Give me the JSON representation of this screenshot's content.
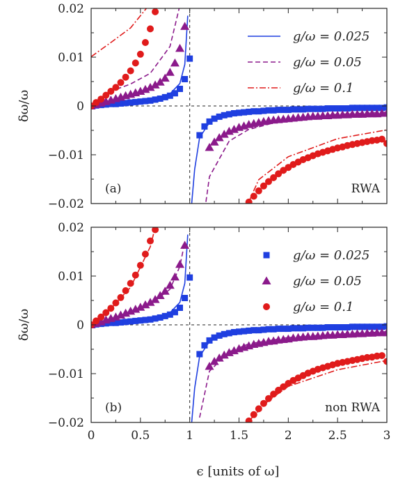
{
  "chart_data": [
    {
      "type": "line",
      "panel_tag": "(a)",
      "corner_label": "RWA",
      "xlabel": "",
      "ylabel": "δω/ω",
      "xlim": [
        0,
        3
      ],
      "ylim": [
        -0.02,
        0.02
      ],
      "x_ticks": [],
      "y_ticks": [
        -0.02,
        -0.01,
        0,
        0.01,
        0.02
      ],
      "y_tick_labels": [
        "−0.02",
        "−0.01",
        "0",
        "0.01",
        "0.02"
      ],
      "legend_position": "top-right",
      "legend": [
        {
          "label": "g/ω = 0.025",
          "style": "solid",
          "color": "#1f3fe0"
        },
        {
          "label": "g/ω = 0.05",
          "style": "dashed",
          "color": "#8b1a8b"
        },
        {
          "label": "g/ω = 0.1",
          "style": "dashdot",
          "color": "#e01b1b"
        }
      ],
      "reference_lines": {
        "horizontal_y": 0,
        "vertical_x": 1
      },
      "series": [
        {
          "color": "#1f3fe0",
          "style": "solid",
          "g": 0.025,
          "x": [
            0,
            0.2,
            0.4,
            0.6,
            0.8,
            0.9,
            0.95,
            0.98,
            1.02,
            1.05,
            1.1,
            1.2,
            1.4,
            1.6,
            2.0,
            2.5,
            3.0
          ],
          "y": [
            0,
            0.0004,
            0.0007,
            0.0012,
            0.0025,
            0.0046,
            0.0085,
            0.0185,
            -0.02,
            -0.013,
            -0.0065,
            -0.0034,
            -0.0017,
            -0.0011,
            -0.0006,
            -0.0004,
            -0.0003
          ]
        },
        {
          "color": "#8b1a8b",
          "style": "dashed",
          "g": 0.05,
          "x": [
            0,
            0.2,
            0.4,
            0.6,
            0.8,
            0.9,
            0.95,
            1.1,
            1.2,
            1.4,
            1.6,
            2.0,
            2.5,
            3.0
          ],
          "y": [
            0,
            0.003,
            0.0045,
            0.0067,
            0.0122,
            0.0206,
            0.029,
            -0.029,
            -0.0145,
            -0.0072,
            -0.0048,
            -0.0027,
            -0.0017,
            -0.0013
          ]
        },
        {
          "color": "#e01b1b",
          "style": "dashdot",
          "g": 0.1,
          "x": [
            0,
            0.2,
            0.4,
            0.6,
            0.7,
            1.55,
            1.7,
            2.0,
            2.5,
            3.0
          ],
          "y": [
            0.0101,
            0.013,
            0.016,
            0.021,
            0.025,
            -0.0219,
            -0.0151,
            -0.0104,
            -0.0067,
            -0.0049
          ]
        }
      ],
      "markers": [
        {
          "color": "#1f3fe0",
          "marker": "square",
          "x": [
            0,
            0.05,
            0.1,
            0.15,
            0.2,
            0.25,
            0.3,
            0.35,
            0.4,
            0.45,
            0.5,
            0.55,
            0.6,
            0.65,
            0.7,
            0.75,
            0.8,
            0.85,
            0.9,
            0.95,
            1.0,
            1.1,
            1.15,
            1.2,
            1.25,
            1.3,
            1.35,
            1.4,
            1.45,
            1.5,
            1.55,
            1.6,
            1.65,
            1.7,
            1.75,
            1.8,
            1.85,
            1.9,
            1.95,
            2.0,
            2.05,
            2.1,
            2.15,
            2.2,
            2.25,
            2.3,
            2.35,
            2.4,
            2.45,
            2.5,
            2.55,
            2.6,
            2.65,
            2.7,
            2.75,
            2.8,
            2.85,
            2.9,
            2.95,
            3.0
          ],
          "y": [
            0,
            0.0001,
            0.0002,
            0.0003,
            0.0004,
            0.0004,
            0.0005,
            0.0006,
            0.0007,
            0.0008,
            0.0009,
            0.001,
            0.0011,
            0.0013,
            0.0015,
            0.0018,
            0.0021,
            0.0026,
            0.0035,
            0.0055,
            0.0097,
            -0.006,
            -0.0042,
            -0.0032,
            -0.0026,
            -0.0022,
            -0.0019,
            -0.0017,
            -0.0015,
            -0.0014,
            -0.0013,
            -0.0012,
            -0.0011,
            -0.0011,
            -0.001,
            -0.0009,
            -0.0009,
            -0.0008,
            -0.0008,
            -0.0008,
            -0.0007,
            -0.0007,
            -0.0007,
            -0.0006,
            -0.0006,
            -0.0006,
            -0.0006,
            -0.0005,
            -0.0005,
            -0.0005,
            -0.0005,
            -0.0005,
            -0.0004,
            -0.0004,
            -0.0004,
            -0.0004,
            -0.0004,
            -0.0004,
            -0.0004,
            -0.0003
          ]
        },
        {
          "color": "#8b1a8b",
          "marker": "triangle",
          "x": [
            0,
            0.05,
            0.1,
            0.15,
            0.2,
            0.25,
            0.3,
            0.35,
            0.4,
            0.45,
            0.5,
            0.55,
            0.6,
            0.65,
            0.7,
            0.75,
            0.8,
            0.85,
            0.9,
            0.95,
            1.2,
            1.25,
            1.3,
            1.35,
            1.4,
            1.45,
            1.5,
            1.55,
            1.6,
            1.65,
            1.7,
            1.75,
            1.8,
            1.85,
            1.9,
            1.95,
            2.0,
            2.05,
            2.1,
            2.15,
            2.2,
            2.25,
            2.3,
            2.35,
            2.4,
            2.45,
            2.5,
            2.55,
            2.6,
            2.65,
            2.7,
            2.75,
            2.8,
            2.85,
            2.9,
            2.95,
            3.0
          ],
          "y": [
            0,
            0.0003,
            0.0006,
            0.0009,
            0.0012,
            0.0015,
            0.0018,
            0.0021,
            0.0024,
            0.0027,
            0.003,
            0.0034,
            0.0038,
            0.0043,
            0.0049,
            0.0057,
            0.0069,
            0.0088,
            0.0118,
            0.0163,
            -0.0085,
            -0.0074,
            -0.0065,
            -0.0058,
            -0.0052,
            -0.0048,
            -0.0044,
            -0.0041,
            -0.0038,
            -0.0036,
            -0.0034,
            -0.0032,
            -0.003,
            -0.0029,
            -0.0028,
            -0.0027,
            -0.0026,
            -0.0025,
            -0.0024,
            -0.0023,
            -0.0022,
            -0.0021,
            -0.0021,
            -0.002,
            -0.002,
            -0.0019,
            -0.0019,
            -0.0018,
            -0.0018,
            -0.0017,
            -0.0017,
            -0.0017,
            -0.0016,
            -0.0016,
            -0.0016,
            -0.0015,
            -0.0015
          ]
        },
        {
          "color": "#e01b1b",
          "marker": "circle",
          "x": [
            0,
            0.05,
            0.1,
            0.15,
            0.2,
            0.25,
            0.3,
            0.35,
            0.4,
            0.45,
            0.5,
            0.55,
            0.6,
            0.65,
            1.6,
            1.65,
            1.7,
            1.75,
            1.8,
            1.85,
            1.9,
            1.95,
            2.0,
            2.05,
            2.1,
            2.15,
            2.2,
            2.25,
            2.3,
            2.35,
            2.4,
            2.45,
            2.5,
            2.55,
            2.6,
            2.65,
            2.7,
            2.75,
            2.8,
            2.85,
            2.9,
            2.95,
            3.0
          ],
          "y": [
            0,
            0.0007,
            0.0014,
            0.0022,
            0.003,
            0.0038,
            0.0048,
            0.0059,
            0.0072,
            0.0088,
            0.0106,
            0.013,
            0.0158,
            0.0193,
            -0.0197,
            -0.0185,
            -0.0174,
            -0.0164,
            -0.0155,
            -0.0147,
            -0.0139,
            -0.0132,
            -0.0126,
            -0.012,
            -0.0115,
            -0.011,
            -0.0106,
            -0.0102,
            -0.0098,
            -0.0095,
            -0.0092,
            -0.0089,
            -0.0086,
            -0.0084,
            -0.0081,
            -0.0079,
            -0.0077,
            -0.0075,
            -0.0073,
            -0.0071,
            -0.007,
            -0.0068,
            -0.0077
          ]
        }
      ]
    },
    {
      "type": "line",
      "panel_tag": "(b)",
      "corner_label": "non RWA",
      "xlabel": "ϵ [units of ω]",
      "ylabel": "δω/ω",
      "xlim": [
        0,
        3
      ],
      "ylim": [
        -0.02,
        0.02
      ],
      "x_ticks": [
        0,
        0.5,
        1,
        1.5,
        2,
        2.5,
        3
      ],
      "x_tick_labels": [
        "0",
        "0.5",
        "1",
        "1.5",
        "2",
        "2.5",
        "3"
      ],
      "y_ticks": [
        -0.02,
        -0.01,
        0,
        0.01,
        0.02
      ],
      "y_tick_labels": [
        "−0.02",
        "−0.01",
        "0",
        "0.01",
        "0.02"
      ],
      "legend_position": "top-right",
      "legend": [
        {
          "label": "g/ω = 0.025",
          "marker": "square",
          "color": "#1f3fe0"
        },
        {
          "label": "g/ω = 0.05",
          "marker": "triangle",
          "color": "#8b1a8b"
        },
        {
          "label": "g/ω = 0.1",
          "marker": "circle",
          "color": "#e01b1b"
        }
      ],
      "reference_lines": {
        "horizontal_y": 0,
        "vertical_x": 1
      },
      "series": [
        {
          "color": "#1f3fe0",
          "style": "solid",
          "g": 0.025,
          "x": [
            0,
            0.2,
            0.4,
            0.6,
            0.8,
            0.9,
            0.95,
            0.98,
            1.02,
            1.05,
            1.1,
            1.2,
            1.4,
            1.6,
            2.0,
            2.5,
            3.0
          ],
          "y": [
            0,
            0.0004,
            0.0007,
            0.0012,
            0.0025,
            0.0046,
            0.0085,
            0.0185,
            -0.02,
            -0.013,
            -0.0065,
            -0.0034,
            -0.0017,
            -0.0011,
            -0.0006,
            -0.0004,
            -0.0003
          ]
        },
        {
          "color": "#8b1a8b",
          "style": "dashed",
          "g": 0.05,
          "x": [
            0,
            0.2,
            0.4,
            0.6,
            0.8,
            0.9,
            0.95,
            1.1,
            1.2,
            1.4,
            1.6,
            2.0,
            2.5,
            3.0
          ],
          "y": [
            0,
            0.0013,
            0.0026,
            0.0042,
            0.0073,
            0.012,
            0.017,
            -0.019,
            -0.0095,
            -0.0055,
            -0.0039,
            -0.0026,
            -0.0019,
            -0.0014
          ]
        },
        {
          "color": "#e01b1b",
          "style": "dashdot",
          "g": 0.1,
          "x": [
            0,
            0.2,
            0.4,
            0.6,
            0.7,
            1.6,
            1.8,
            2.0,
            2.5,
            3.0
          ],
          "y": [
            0,
            0.0033,
            0.0077,
            0.016,
            0.024,
            -0.0197,
            -0.0155,
            -0.0126,
            -0.0092,
            -0.0073
          ]
        }
      ],
      "markers": [
        {
          "color": "#1f3fe0",
          "marker": "square",
          "x": [
            0,
            0.05,
            0.1,
            0.15,
            0.2,
            0.25,
            0.3,
            0.35,
            0.4,
            0.45,
            0.5,
            0.55,
            0.6,
            0.65,
            0.7,
            0.75,
            0.8,
            0.85,
            0.9,
            0.95,
            1.0,
            1.1,
            1.15,
            1.2,
            1.25,
            1.3,
            1.35,
            1.4,
            1.45,
            1.5,
            1.55,
            1.6,
            1.65,
            1.7,
            1.75,
            1.8,
            1.85,
            1.9,
            1.95,
            2.0,
            2.05,
            2.1,
            2.15,
            2.2,
            2.25,
            2.3,
            2.35,
            2.4,
            2.45,
            2.5,
            2.55,
            2.6,
            2.65,
            2.7,
            2.75,
            2.8,
            2.85,
            2.9,
            2.95,
            3.0
          ],
          "y": [
            0,
            0.0001,
            0.0002,
            0.0003,
            0.0004,
            0.0004,
            0.0005,
            0.0006,
            0.0007,
            0.0008,
            0.0009,
            0.001,
            0.0011,
            0.0013,
            0.0015,
            0.0018,
            0.0021,
            0.0026,
            0.0035,
            0.0055,
            0.0097,
            -0.006,
            -0.0042,
            -0.0032,
            -0.0026,
            -0.0022,
            -0.0019,
            -0.0017,
            -0.0015,
            -0.0014,
            -0.0013,
            -0.0012,
            -0.0011,
            -0.0011,
            -0.001,
            -0.0009,
            -0.0009,
            -0.0008,
            -0.0008,
            -0.0008,
            -0.0007,
            -0.0007,
            -0.0007,
            -0.0006,
            -0.0006,
            -0.0006,
            -0.0006,
            -0.0005,
            -0.0005,
            -0.0005,
            -0.0005,
            -0.0005,
            -0.0004,
            -0.0004,
            -0.0004,
            -0.0004,
            -0.0004,
            -0.0004,
            -0.0004,
            -0.0003
          ]
        },
        {
          "color": "#8b1a8b",
          "marker": "triangle",
          "x": [
            0,
            0.05,
            0.1,
            0.15,
            0.2,
            0.25,
            0.3,
            0.35,
            0.4,
            0.45,
            0.5,
            0.55,
            0.6,
            0.65,
            0.7,
            0.75,
            0.8,
            0.85,
            0.9,
            0.95,
            1.2,
            1.25,
            1.3,
            1.35,
            1.4,
            1.45,
            1.5,
            1.55,
            1.6,
            1.65,
            1.7,
            1.75,
            1.8,
            1.85,
            1.9,
            1.95,
            2.0,
            2.05,
            2.1,
            2.15,
            2.2,
            2.25,
            2.3,
            2.35,
            2.4,
            2.45,
            2.5,
            2.55,
            2.6,
            2.65,
            2.7,
            2.75,
            2.8,
            2.85,
            2.9,
            2.95,
            3.0
          ],
          "y": [
            0,
            0.0003,
            0.0006,
            0.001,
            0.0013,
            0.0016,
            0.002,
            0.0024,
            0.0028,
            0.0032,
            0.0036,
            0.0041,
            0.0046,
            0.0052,
            0.006,
            0.0069,
            0.0081,
            0.0098,
            0.0124,
            0.0163,
            -0.0085,
            -0.0075,
            -0.0068,
            -0.0062,
            -0.0057,
            -0.0053,
            -0.0049,
            -0.0046,
            -0.0043,
            -0.004,
            -0.0038,
            -0.0036,
            -0.0034,
            -0.0033,
            -0.0031,
            -0.003,
            -0.0029,
            -0.0027,
            -0.0026,
            -0.0025,
            -0.0024,
            -0.0024,
            -0.0023,
            -0.0022,
            -0.0021,
            -0.0021,
            -0.002,
            -0.002,
            -0.0019,
            -0.0019,
            -0.0018,
            -0.0018,
            -0.0017,
            -0.0017,
            -0.0016,
            -0.0016,
            -0.0016
          ]
        },
        {
          "color": "#e01b1b",
          "marker": "circle",
          "x": [
            0,
            0.05,
            0.1,
            0.15,
            0.2,
            0.25,
            0.3,
            0.35,
            0.4,
            0.45,
            0.5,
            0.55,
            0.6,
            0.65,
            1.6,
            1.65,
            1.7,
            1.75,
            1.8,
            1.85,
            1.9,
            1.95,
            2.0,
            2.05,
            2.1,
            2.15,
            2.2,
            2.25,
            2.3,
            2.35,
            2.4,
            2.45,
            2.5,
            2.55,
            2.6,
            2.65,
            2.7,
            2.75,
            2.8,
            2.85,
            2.9,
            2.95,
            3.0
          ],
          "y": [
            0,
            0.0008,
            0.0016,
            0.0025,
            0.0034,
            0.0045,
            0.0056,
            0.007,
            0.0085,
            0.0102,
            0.0122,
            0.0145,
            0.0172,
            0.0195,
            -0.0197,
            -0.0184,
            -0.0172,
            -0.0161,
            -0.0151,
            -0.0142,
            -0.0134,
            -0.0127,
            -0.012,
            -0.0114,
            -0.0109,
            -0.0104,
            -0.0099,
            -0.0095,
            -0.0091,
            -0.0088,
            -0.0085,
            -0.0082,
            -0.0079,
            -0.0077,
            -0.0075,
            -0.0073,
            -0.0071,
            -0.0069,
            -0.0067,
            -0.0066,
            -0.0064,
            -0.0063,
            -0.0075
          ]
        }
      ]
    }
  ]
}
